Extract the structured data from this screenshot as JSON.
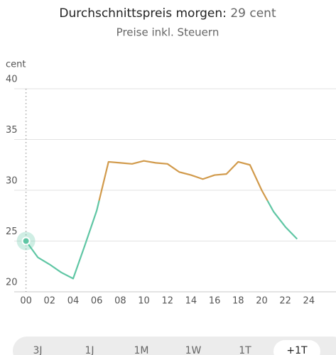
{
  "header": {
    "title": "Durchschnittspreis morgen:",
    "average": 29,
    "subtitle": "Preise inkl. Steuern"
  },
  "chart_data": {
    "type": "line",
    "unit": "cent",
    "x": [
      0,
      1,
      2,
      3,
      4,
      5,
      6,
      7,
      8,
      9,
      10,
      11,
      12,
      13,
      14,
      15,
      16,
      17,
      18,
      19,
      20,
      21,
      22,
      23
    ],
    "series": [
      {
        "color": "#d19a4b",
        "color_below_average": "#5fc6a4",
        "values": [
          25.0,
          23.4,
          22.7,
          21.9,
          21.3,
          24.6,
          28.0,
          32.8,
          32.7,
          32.6,
          32.9,
          32.7,
          32.6,
          31.8,
          31.5,
          31.1,
          31.5,
          31.6,
          32.8,
          32.5,
          30.0,
          27.9,
          26.4,
          25.2
        ]
      }
    ],
    "marker_index": 0,
    "xlim": [
      -1,
      26.3
    ],
    "xticks": [
      {
        "value": 0,
        "label": "00"
      },
      {
        "value": 2,
        "label": "02"
      },
      {
        "value": 4,
        "label": "04"
      },
      {
        "value": 6,
        "label": "06"
      },
      {
        "value": 8,
        "label": "08"
      },
      10,
      12,
      14,
      16,
      18,
      20,
      22,
      24
    ],
    "ylim": [
      20,
      40
    ],
    "yticks": [
      20,
      25,
      30,
      35,
      40
    ],
    "grid": true
  },
  "tabs": {
    "items": [
      "3J",
      "1J",
      "1M",
      "1W",
      "1T",
      "+1T"
    ],
    "selected": 5
  }
}
